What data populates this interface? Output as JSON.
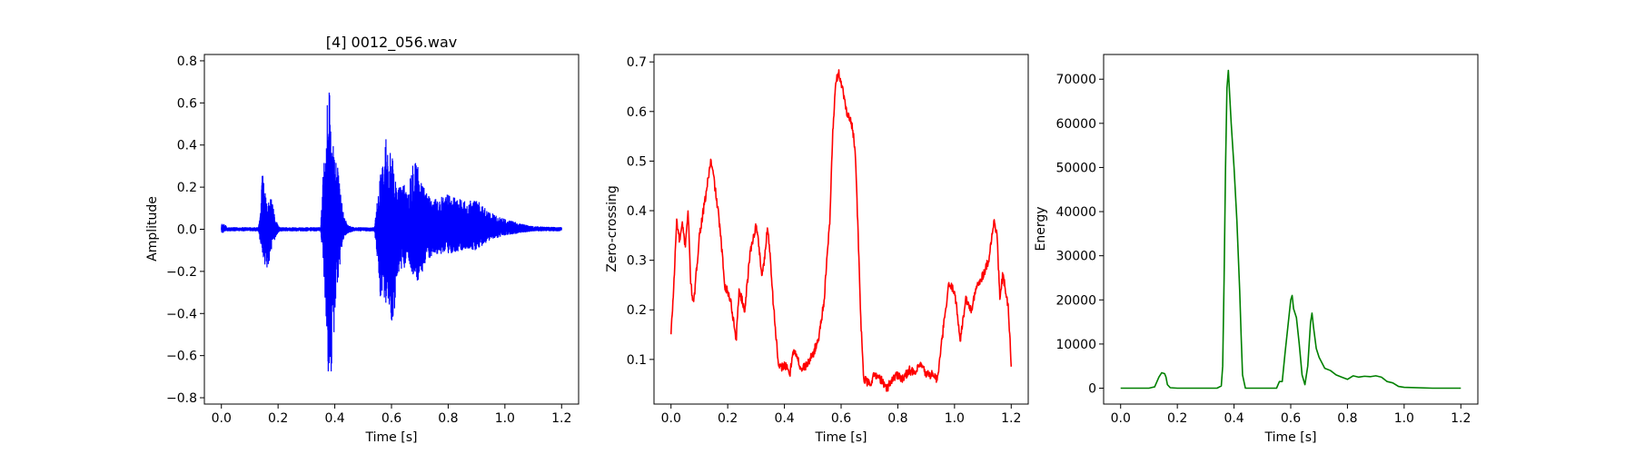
{
  "chart_data": [
    {
      "type": "line",
      "title": "[4] 0012_056.wav",
      "xlabel": "Time [s]",
      "ylabel": "Amplitude",
      "xlim": [
        -0.06,
        1.26
      ],
      "ylim": [
        -0.83,
        0.83
      ],
      "xticks": [
        0.0,
        0.2,
        0.4,
        0.6,
        0.8,
        1.0,
        1.2
      ],
      "xtick_labels": [
        "0.0",
        "0.2",
        "0.4",
        "0.6",
        "0.8",
        "1.0",
        "1.2"
      ],
      "yticks": [
        -0.8,
        -0.6,
        -0.4,
        -0.2,
        0.0,
        0.2,
        0.4,
        0.6,
        0.8
      ],
      "ytick_labels": [
        "−0.8",
        "−0.6",
        "−0.4",
        "−0.2",
        "0.0",
        "0.2",
        "0.4",
        "0.6",
        "0.8"
      ],
      "color": "#0000ff",
      "series": [
        {
          "envelope": {
            "x": [
              0.0,
              0.005,
              0.01,
              0.02,
              0.13,
              0.138,
              0.145,
              0.16,
              0.175,
              0.19,
              0.2,
              0.205,
              0.35,
              0.36,
              0.37,
              0.375,
              0.38,
              0.385,
              0.39,
              0.395,
              0.4,
              0.41,
              0.42,
              0.43,
              0.445,
              0.47,
              0.54,
              0.555,
              0.56,
              0.57,
              0.58,
              0.59,
              0.6,
              0.61,
              0.62,
              0.64,
              0.66,
              0.68,
              0.7,
              0.72,
              0.75,
              0.8,
              0.85,
              0.9,
              0.95,
              1.0,
              1.05,
              1.1,
              1.2
            ],
            "upper": [
              0.03,
              0.02,
              0.03,
              0.01,
              0.01,
              0.08,
              0.29,
              0.12,
              0.15,
              0.06,
              0.02,
              0.01,
              0.01,
              0.3,
              0.45,
              0.67,
              0.76,
              0.6,
              0.52,
              0.4,
              0.38,
              0.3,
              0.18,
              0.08,
              0.02,
              0.01,
              0.01,
              0.2,
              0.34,
              0.3,
              0.47,
              0.36,
              0.37,
              0.27,
              0.2,
              0.22,
              0.2,
              0.4,
              0.26,
              0.18,
              0.14,
              0.17,
              0.14,
              0.14,
              0.08,
              0.05,
              0.03,
              0.015,
              0.01
            ],
            "lower": [
              -0.02,
              -0.02,
              -0.01,
              -0.01,
              -0.01,
              -0.08,
              -0.14,
              -0.2,
              -0.12,
              -0.04,
              -0.02,
              -0.01,
              -0.01,
              -0.18,
              -0.5,
              -0.66,
              -0.75,
              -0.72,
              -0.64,
              -0.5,
              -0.48,
              -0.3,
              -0.15,
              -0.05,
              -0.02,
              -0.01,
              -0.01,
              -0.2,
              -0.32,
              -0.3,
              -0.35,
              -0.38,
              -0.45,
              -0.4,
              -0.22,
              -0.2,
              -0.14,
              -0.26,
              -0.24,
              -0.16,
              -0.12,
              -0.12,
              -0.1,
              -0.1,
              -0.05,
              -0.03,
              -0.02,
              -0.01,
              -0.01
            ]
          }
        }
      ]
    },
    {
      "type": "line",
      "title": "",
      "xlabel": "Time [s]",
      "ylabel": "Zero-crossing",
      "xlim": [
        -0.06,
        1.26
      ],
      "ylim": [
        0.01,
        0.715
      ],
      "xticks": [
        0.0,
        0.2,
        0.4,
        0.6,
        0.8,
        1.0,
        1.2
      ],
      "xtick_labels": [
        "0.0",
        "0.2",
        "0.4",
        "0.6",
        "0.8",
        "1.0",
        "1.2"
      ],
      "yticks": [
        0.1,
        0.2,
        0.3,
        0.4,
        0.5,
        0.6,
        0.7
      ],
      "ytick_labels": [
        "0.1",
        "0.2",
        "0.3",
        "0.4",
        "0.5",
        "0.6",
        "0.7"
      ],
      "color": "#ff0000",
      "series": [
        {
          "x": [
            0.0,
            0.01,
            0.02,
            0.03,
            0.04,
            0.05,
            0.06,
            0.07,
            0.08,
            0.09,
            0.1,
            0.12,
            0.14,
            0.15,
            0.17,
            0.19,
            0.21,
            0.23,
            0.24,
            0.26,
            0.28,
            0.3,
            0.31,
            0.32,
            0.33,
            0.34,
            0.35,
            0.36,
            0.37,
            0.38,
            0.4,
            0.42,
            0.43,
            0.44,
            0.46,
            0.48,
            0.5,
            0.52,
            0.54,
            0.56,
            0.57,
            0.58,
            0.59,
            0.6,
            0.62,
            0.64,
            0.65,
            0.66,
            0.67,
            0.68,
            0.7,
            0.72,
            0.74,
            0.76,
            0.78,
            0.8,
            0.82,
            0.84,
            0.86,
            0.88,
            0.9,
            0.92,
            0.94,
            0.96,
            0.98,
            1.0,
            1.02,
            1.04,
            1.06,
            1.08,
            1.1,
            1.12,
            1.13,
            1.14,
            1.15,
            1.16,
            1.17,
            1.18,
            1.19,
            1.2
          ],
          "y": [
            0.15,
            0.25,
            0.38,
            0.34,
            0.37,
            0.33,
            0.4,
            0.25,
            0.21,
            0.28,
            0.35,
            0.42,
            0.5,
            0.47,
            0.38,
            0.25,
            0.22,
            0.14,
            0.24,
            0.2,
            0.32,
            0.37,
            0.33,
            0.27,
            0.3,
            0.37,
            0.31,
            0.22,
            0.15,
            0.08,
            0.09,
            0.07,
            0.12,
            0.11,
            0.08,
            0.09,
            0.11,
            0.14,
            0.22,
            0.38,
            0.55,
            0.65,
            0.68,
            0.66,
            0.6,
            0.57,
            0.52,
            0.35,
            0.17,
            0.06,
            0.05,
            0.07,
            0.06,
            0.04,
            0.06,
            0.07,
            0.06,
            0.08,
            0.07,
            0.09,
            0.07,
            0.07,
            0.06,
            0.16,
            0.25,
            0.24,
            0.14,
            0.22,
            0.2,
            0.25,
            0.27,
            0.3,
            0.34,
            0.38,
            0.35,
            0.22,
            0.27,
            0.24,
            0.2,
            0.09
          ]
        }
      ]
    },
    {
      "type": "line",
      "title": "",
      "xlabel": "Time [s]",
      "ylabel": "Energy",
      "xlim": [
        -0.06,
        1.26
      ],
      "ylim": [
        -3600,
        75600
      ],
      "xticks": [
        0.0,
        0.2,
        0.4,
        0.6,
        0.8,
        1.0,
        1.2
      ],
      "xtick_labels": [
        "0.0",
        "0.2",
        "0.4",
        "0.6",
        "0.8",
        "1.0",
        "1.2"
      ],
      "yticks": [
        0,
        10000,
        20000,
        30000,
        40000,
        50000,
        60000,
        70000
      ],
      "ytick_labels": [
        "0",
        "10000",
        "20000",
        "30000",
        "40000",
        "50000",
        "60000",
        "70000"
      ],
      "color": "#008000",
      "series": [
        {
          "x": [
            0.0,
            0.1,
            0.12,
            0.135,
            0.145,
            0.155,
            0.16,
            0.165,
            0.175,
            0.2,
            0.34,
            0.355,
            0.36,
            0.365,
            0.37,
            0.375,
            0.38,
            0.385,
            0.39,
            0.4,
            0.41,
            0.42,
            0.425,
            0.43,
            0.44,
            0.55,
            0.56,
            0.57,
            0.58,
            0.59,
            0.6,
            0.605,
            0.61,
            0.62,
            0.63,
            0.64,
            0.65,
            0.66,
            0.67,
            0.675,
            0.68,
            0.69,
            0.7,
            0.72,
            0.74,
            0.76,
            0.78,
            0.8,
            0.82,
            0.84,
            0.86,
            0.88,
            0.9,
            0.92,
            0.94,
            0.96,
            0.98,
            1.0,
            1.1,
            1.2
          ],
          "y": [
            0,
            0,
            300,
            2500,
            3500,
            3300,
            2500,
            800,
            100,
            0,
            0,
            500,
            5000,
            25000,
            50000,
            68000,
            72000,
            66000,
            60000,
            50000,
            38000,
            22000,
            12000,
            3000,
            0,
            0,
            1500,
            1500,
            8000,
            14000,
            20000,
            21000,
            18000,
            16000,
            10000,
            3000,
            800,
            5000,
            15000,
            17000,
            14000,
            9000,
            7000,
            4500,
            4000,
            3000,
            2500,
            2000,
            2800,
            2500,
            2700,
            2600,
            2800,
            2500,
            1500,
            1200,
            400,
            200,
            0,
            0
          ]
        }
      ]
    }
  ]
}
